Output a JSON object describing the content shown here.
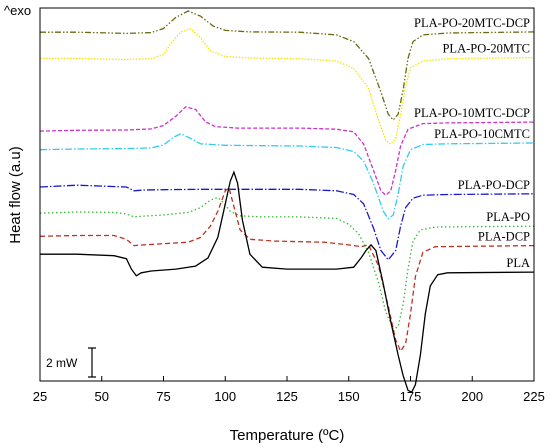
{
  "chart_data": {
    "type": "line",
    "xlabel": "Temperature (ºC)",
    "ylabel": "Heat flow (a.u)",
    "exo_label": "^exo",
    "scale_bar_label": "2 mW",
    "xlim": [
      25,
      225
    ],
    "xticks": [
      25,
      50,
      75,
      100,
      125,
      150,
      175,
      200,
      225
    ],
    "ylim": [
      0,
      100
    ],
    "grid": false,
    "legend": "inline-right",
    "series": [
      {
        "name": "PLA-PO-20MTC-DCP",
        "color": "#6b6b10",
        "dash": "6,2,1.5,2,1.5,2",
        "points": [
          [
            25,
            93.5
          ],
          [
            40,
            93.5
          ],
          [
            60,
            93.2
          ],
          [
            70,
            93.4
          ],
          [
            75,
            94.5
          ],
          [
            80,
            97.5
          ],
          [
            85,
            99.2
          ],
          [
            90,
            97.8
          ],
          [
            95,
            95.2
          ],
          [
            100,
            94.0
          ],
          [
            110,
            93.6
          ],
          [
            130,
            93.5
          ],
          [
            145,
            92.8
          ],
          [
            152,
            91.0
          ],
          [
            158,
            86.5
          ],
          [
            163,
            77.5
          ],
          [
            166,
            71.5
          ],
          [
            168,
            70.0
          ],
          [
            170,
            71.5
          ],
          [
            172,
            78.0
          ],
          [
            174,
            86.5
          ],
          [
            176,
            91.0
          ],
          [
            180,
            92.8
          ],
          [
            190,
            93.3
          ],
          [
            225,
            93.6
          ]
        ]
      },
      {
        "name": "PLA-PO-20MTC",
        "color": "#f2e600",
        "dash": "1.5,1.5",
        "points": [
          [
            25,
            86.5
          ],
          [
            40,
            86.5
          ],
          [
            60,
            86.2
          ],
          [
            70,
            86.4
          ],
          [
            75,
            87.5
          ],
          [
            78,
            90.5
          ],
          [
            82,
            93.6
          ],
          [
            86,
            94.4
          ],
          [
            90,
            92.0
          ],
          [
            94,
            88.5
          ],
          [
            100,
            87.0
          ],
          [
            110,
            86.6
          ],
          [
            130,
            86.4
          ],
          [
            145,
            85.8
          ],
          [
            152,
            83.8
          ],
          [
            158,
            78.5
          ],
          [
            162,
            70.0
          ],
          [
            165,
            64.5
          ],
          [
            167,
            63.5
          ],
          [
            169,
            65.0
          ],
          [
            171,
            71.5
          ],
          [
            173,
            79.0
          ],
          [
            175,
            84.0
          ],
          [
            180,
            85.8
          ],
          [
            190,
            86.4
          ],
          [
            225,
            86.7
          ]
        ]
      },
      {
        "name": "PLA-PO-10MTC-DCP",
        "color": "#cc33cc",
        "dash": "4,2",
        "points": [
          [
            25,
            67.0
          ],
          [
            40,
            67.2
          ],
          [
            60,
            67.3
          ],
          [
            70,
            67.6
          ],
          [
            75,
            68.5
          ],
          [
            80,
            71.0
          ],
          [
            84,
            73.5
          ],
          [
            88,
            72.8
          ],
          [
            92,
            69.5
          ],
          [
            96,
            68.2
          ],
          [
            105,
            67.8
          ],
          [
            130,
            67.8
          ],
          [
            145,
            67.5
          ],
          [
            152,
            66.8
          ],
          [
            156,
            63.5
          ],
          [
            160,
            56.5
          ],
          [
            163,
            51.0
          ],
          [
            165,
            49.8
          ],
          [
            167,
            51.0
          ],
          [
            169,
            56.5
          ],
          [
            171,
            63.0
          ],
          [
            174,
            67.5
          ],
          [
            180,
            69.0
          ],
          [
            190,
            69.2
          ],
          [
            225,
            69.4
          ]
        ]
      },
      {
        "name": "PLA-PO-10CMTC",
        "color": "#33ccee",
        "dash": "7,2,1.5,2",
        "points": [
          [
            25,
            62.0
          ],
          [
            40,
            62.2
          ],
          [
            60,
            62.3
          ],
          [
            70,
            62.5
          ],
          [
            75,
            63.3
          ],
          [
            79,
            65.3
          ],
          [
            82,
            66.3
          ],
          [
            86,
            65.0
          ],
          [
            90,
            63.6
          ],
          [
            100,
            63.2
          ],
          [
            130,
            63.0
          ],
          [
            145,
            62.6
          ],
          [
            152,
            61.5
          ],
          [
            156,
            59.0
          ],
          [
            160,
            53.0
          ],
          [
            164,
            45.5
          ],
          [
            166,
            43.5
          ],
          [
            168,
            44.5
          ],
          [
            170,
            50.0
          ],
          [
            172,
            57.5
          ],
          [
            175,
            62.0
          ],
          [
            180,
            63.4
          ],
          [
            190,
            63.6
          ],
          [
            225,
            63.8
          ]
        ]
      },
      {
        "name": "PLA-PO-DCP",
        "color": "#1a1acc",
        "dash": "8,2,1.5,2",
        "points": [
          [
            25,
            52.0
          ],
          [
            40,
            52.5
          ],
          [
            60,
            52.0
          ],
          [
            63,
            51.0
          ],
          [
            67,
            51.2
          ],
          [
            75,
            51.3
          ],
          [
            90,
            51.4
          ],
          [
            110,
            51.4
          ],
          [
            130,
            51.4
          ],
          [
            145,
            51.0
          ],
          [
            152,
            50.0
          ],
          [
            156,
            47.5
          ],
          [
            160,
            41.0
          ],
          [
            163,
            35.0
          ],
          [
            166,
            32.5
          ],
          [
            169,
            35.0
          ],
          [
            171,
            41.5
          ],
          [
            173,
            46.5
          ],
          [
            176,
            49.0
          ],
          [
            180,
            49.8
          ],
          [
            190,
            50.0
          ],
          [
            225,
            50.2
          ]
        ]
      },
      {
        "name": "PLA-PO",
        "color": "#33bb33",
        "dash": "1.5,2.5",
        "points": [
          [
            25,
            45.0
          ],
          [
            40,
            45.3
          ],
          [
            55,
            45.2
          ],
          [
            60,
            44.8
          ],
          [
            63,
            44.0
          ],
          [
            67,
            44.2
          ],
          [
            75,
            44.5
          ],
          [
            85,
            45.2
          ],
          [
            90,
            46.5
          ],
          [
            94,
            48.5
          ],
          [
            97,
            49.2
          ],
          [
            99,
            48.0
          ],
          [
            102,
            45.5
          ],
          [
            106,
            44.3
          ],
          [
            115,
            44.0
          ],
          [
            130,
            44.0
          ],
          [
            145,
            43.6
          ],
          [
            150,
            42.0
          ],
          [
            154,
            39.5
          ],
          [
            158,
            34.5
          ],
          [
            162,
            26.5
          ],
          [
            165,
            18.5
          ],
          [
            168,
            14.0
          ],
          [
            170,
            14.5
          ],
          [
            172,
            20.5
          ],
          [
            174,
            30.0
          ],
          [
            176,
            37.5
          ],
          [
            179,
            40.5
          ],
          [
            185,
            41.3
          ],
          [
            225,
            41.5
          ]
        ]
      },
      {
        "name": "PLA-DCP",
        "color": "#bb3322",
        "dash": "5,3",
        "points": [
          [
            25,
            38.8
          ],
          [
            40,
            39.0
          ],
          [
            55,
            39.0
          ],
          [
            60,
            38.0
          ],
          [
            63,
            36.3
          ],
          [
            67,
            36.5
          ],
          [
            75,
            36.8
          ],
          [
            85,
            37.2
          ],
          [
            90,
            38.5
          ],
          [
            94,
            41.5
          ],
          [
            97,
            45.5
          ],
          [
            100,
            51.0
          ],
          [
            101.5,
            51.8
          ],
          [
            103,
            48.0
          ],
          [
            106,
            40.5
          ],
          [
            110,
            38.0
          ],
          [
            120,
            37.5
          ],
          [
            140,
            37.2
          ],
          [
            150,
            36.5
          ],
          [
            155,
            36.0
          ],
          [
            158,
            36.5
          ],
          [
            162,
            31.0
          ],
          [
            166,
            20.0
          ],
          [
            169,
            11.0
          ],
          [
            171,
            8.0
          ],
          [
            173,
            10.0
          ],
          [
            175,
            18.0
          ],
          [
            177,
            28.0
          ],
          [
            180,
            34.5
          ],
          [
            185,
            36.0
          ],
          [
            225,
            36.3
          ]
        ]
      },
      {
        "name": "PLA",
        "color": "#000000",
        "dash": "",
        "points": [
          [
            25,
            34.0
          ],
          [
            40,
            34.0
          ],
          [
            55,
            33.6
          ],
          [
            60,
            32.8
          ],
          [
            62,
            30.0
          ],
          [
            64,
            28.2
          ],
          [
            66,
            29.0
          ],
          [
            70,
            29.5
          ],
          [
            80,
            30.0
          ],
          [
            88,
            30.8
          ],
          [
            93,
            33.0
          ],
          [
            97,
            38.5
          ],
          [
            100,
            47.5
          ],
          [
            102,
            53.5
          ],
          [
            103.5,
            56.0
          ],
          [
            105,
            53.0
          ],
          [
            107,
            43.0
          ],
          [
            110,
            34.0
          ],
          [
            115,
            30.5
          ],
          [
            125,
            30.0
          ],
          [
            145,
            30.0
          ],
          [
            152,
            30.5
          ],
          [
            155,
            33.0
          ],
          [
            157,
            35.0
          ],
          [
            159,
            36.5
          ],
          [
            161,
            35.0
          ],
          [
            164,
            26.0
          ],
          [
            167,
            16.0
          ],
          [
            170,
            7.0
          ],
          [
            172,
            1.5
          ],
          [
            174,
            -2.5
          ],
          [
            175.5,
            -3.0
          ],
          [
            177,
            -1.0
          ],
          [
            179,
            7.0
          ],
          [
            181,
            18.0
          ],
          [
            183,
            25.5
          ],
          [
            186,
            28.5
          ],
          [
            190,
            29.0
          ],
          [
            225,
            29.2
          ]
        ]
      }
    ]
  }
}
